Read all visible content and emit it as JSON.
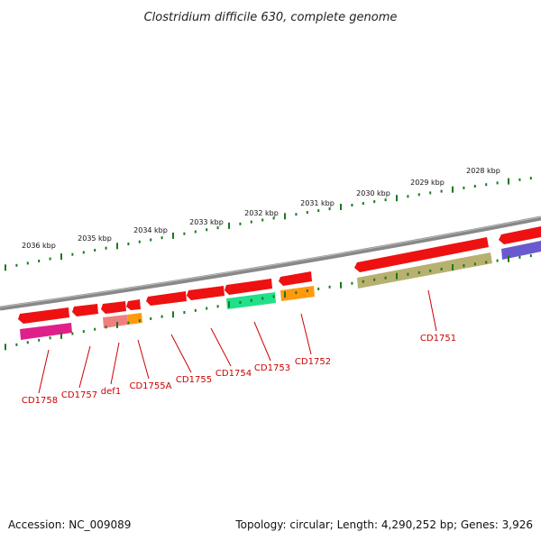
{
  "title": "Clostridium difficile 630, complete genome",
  "footer": {
    "accession": "Accession: NC_009089",
    "summary": "Topology: circular; Length: 4,290,252 bp; Genes: 3,926"
  },
  "colors": {
    "background": "#ffffff",
    "backbone": "#888888",
    "ticks": "#1a7a1a",
    "gene_label": "#cc0000",
    "forward_gene": "#ee1111"
  },
  "kbp_ticks": [
    "2036 kbp",
    "2035 kbp",
    "2034 kbp",
    "2033 kbp",
    "2032 kbp",
    "2031 kbp",
    "2030 kbp",
    "2029 kbp",
    "2028 kbp"
  ],
  "gene_labels": [
    "CD1758",
    "CD1757",
    "def1",
    "CD1755A",
    "CD1755",
    "CD1754",
    "CD1753",
    "CD1752",
    "CD1751"
  ],
  "feature_tracks": [
    {
      "name": "magenta",
      "color": "#e0208a"
    },
    {
      "name": "salmon",
      "color": "#f08080"
    },
    {
      "name": "orange",
      "color": "#ff9a10"
    },
    {
      "name": "green",
      "color": "#22e08a"
    },
    {
      "name": "khaki",
      "color": "#b8b070"
    },
    {
      "name": "purple",
      "color": "#6a5ad0"
    }
  ]
}
